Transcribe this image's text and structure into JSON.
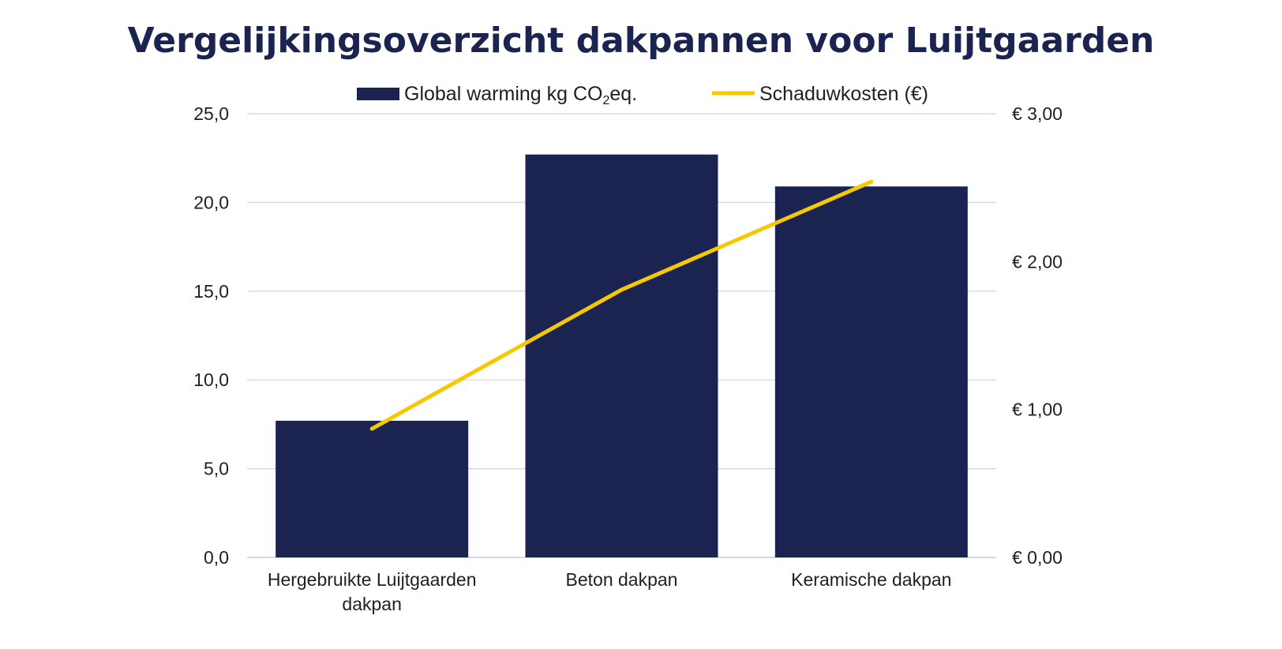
{
  "chart_data": {
    "type": "bar",
    "title": "Vergelijkingsoverzicht dakpannen voor Luijtgaarden",
    "categories": [
      "Hergebruikte Luijtgaarden dakpan",
      "Beton dakpan",
      "Keramische dakpan"
    ],
    "category_lines": [
      [
        "Hergebruikte Luijtgaarden",
        "dakpan"
      ],
      [
        "Beton dakpan"
      ],
      [
        "Keramische dakpan"
      ]
    ],
    "series": [
      {
        "name": "Global warming kg CO2eq.",
        "type": "bar",
        "axis": "left",
        "color": "#1b2450",
        "values": [
          7.7,
          22.7,
          20.9
        ]
      },
      {
        "name": "Schaduwkosten (€)",
        "type": "line",
        "axis": "right",
        "color": "#f5c800",
        "values": [
          0.87,
          1.81,
          2.54
        ]
      }
    ],
    "legend": {
      "bar_label_main": "Global warming kg CO",
      "bar_label_sub": "2",
      "bar_label_end": "eq.",
      "line_label": "Schaduwkosten (€)",
      "position": "top"
    },
    "y_left": {
      "lim": [
        0,
        25
      ],
      "ticks": [
        "0,0",
        "5,0",
        "10,0",
        "15,0",
        "20,0",
        "25,0"
      ]
    },
    "y_right": {
      "lim": [
        0,
        3
      ],
      "ticks": [
        "€ 0,00",
        "€ 1,00",
        "€ 2,00",
        "€ 3,00"
      ]
    },
    "grid": true
  }
}
